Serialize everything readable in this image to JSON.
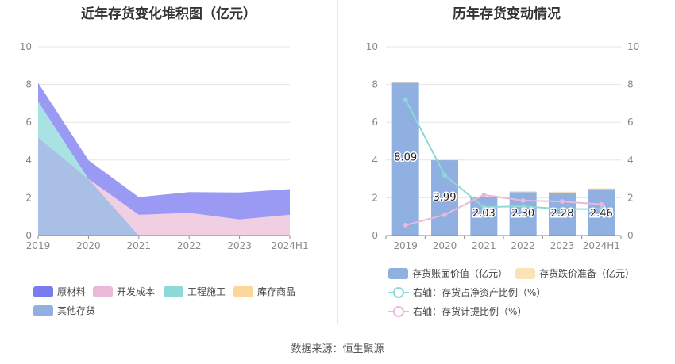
{
  "left_chart": {
    "title": "近年存货变化堆积图（亿元）",
    "legend": [
      {
        "label": "原材料",
        "color": "#7b7bf0"
      },
      {
        "label": "开发成本",
        "color": "#eab8d8"
      },
      {
        "label": "工程施工",
        "color": "#8ed8d8"
      },
      {
        "label": "库存商品",
        "color": "#fbd79a"
      },
      {
        "label": "其他存货",
        "color": "#8fb0e0"
      }
    ]
  },
  "right_chart": {
    "title": "历年存货变动情况",
    "legend": [
      {
        "label": "存货账面价值（亿元）",
        "color": "#8fb0e0"
      },
      {
        "label": "存货跌价准备（亿元）",
        "color": "#fbe3b8"
      },
      {
        "label": "右轴：存货占净资产比例（%）",
        "color": "#8ed8d8"
      },
      {
        "label": "右轴：存货计提比例（%）",
        "color": "#eab8d8"
      }
    ]
  },
  "footer": "数据来源：恒生聚源",
  "chart_data": [
    {
      "type": "area",
      "title": "近年存货变化堆积图（亿元）",
      "stacked": true,
      "categories": [
        "2019",
        "2020",
        "2021",
        "2022",
        "2023",
        "2024H1"
      ],
      "ylim": [
        0,
        10
      ],
      "yticks": [
        "0",
        "2",
        "4",
        "6",
        "8",
        "10"
      ],
      "grid": true,
      "legend_position": "bottom",
      "series": [
        {
          "name": "其他存货",
          "color": "#a9bfe6",
          "values": [
            5.2,
            3.0,
            0,
            0,
            0,
            0
          ]
        },
        {
          "name": "开发成本",
          "color": "#f0cfe2",
          "values": [
            0,
            0,
            1.1,
            1.2,
            0.85,
            1.1
          ]
        },
        {
          "name": "工程施工",
          "color": "#a8e2e2",
          "values": [
            1.9,
            0,
            0,
            0,
            0,
            0
          ]
        },
        {
          "name": "库存商品",
          "color": "#fbd79a",
          "values": [
            0,
            0,
            0,
            0,
            0,
            0
          ]
        },
        {
          "name": "原材料",
          "color": "#9a9af5",
          "values": [
            0.99,
            0.99,
            0.93,
            1.1,
            1.43,
            1.36
          ]
        }
      ]
    },
    {
      "type": "bar",
      "title": "历年存货变动情况",
      "categories": [
        "2019",
        "2020",
        "2021",
        "2022",
        "2023",
        "2024H1"
      ],
      "ylim": [
        0,
        10
      ],
      "y2lim": [
        0,
        10
      ],
      "yticks": [
        "0",
        "2",
        "4",
        "6",
        "8",
        "10"
      ],
      "grid": true,
      "legend_position": "bottom",
      "series": [
        {
          "name": "存货账面价值（亿元）",
          "color": "#8fb0e0",
          "values": [
            8.09,
            3.99,
            2.03,
            2.3,
            2.28,
            2.46
          ],
          "labels": [
            "8.09",
            "3.99",
            "2.03",
            "2.30",
            "2.28",
            "2.46"
          ]
        },
        {
          "name": "存货跌价准备（亿元）",
          "color": "#fbe3b8",
          "values": [
            0.05,
            0.04,
            0.03,
            0.05,
            0.04,
            0.04
          ]
        },
        {
          "name": "右轴：存货占净资产比例（%）",
          "color": "#8ed8d8",
          "axis": "right",
          "values": [
            7.2,
            3.2,
            1.5,
            1.55,
            1.4,
            1.4
          ]
        },
        {
          "name": "右轴：存货计提比例（%）",
          "color": "#eab8d8",
          "axis": "right",
          "values": [
            0.55,
            1.1,
            2.15,
            1.85,
            1.8,
            1.65
          ]
        }
      ]
    }
  ]
}
